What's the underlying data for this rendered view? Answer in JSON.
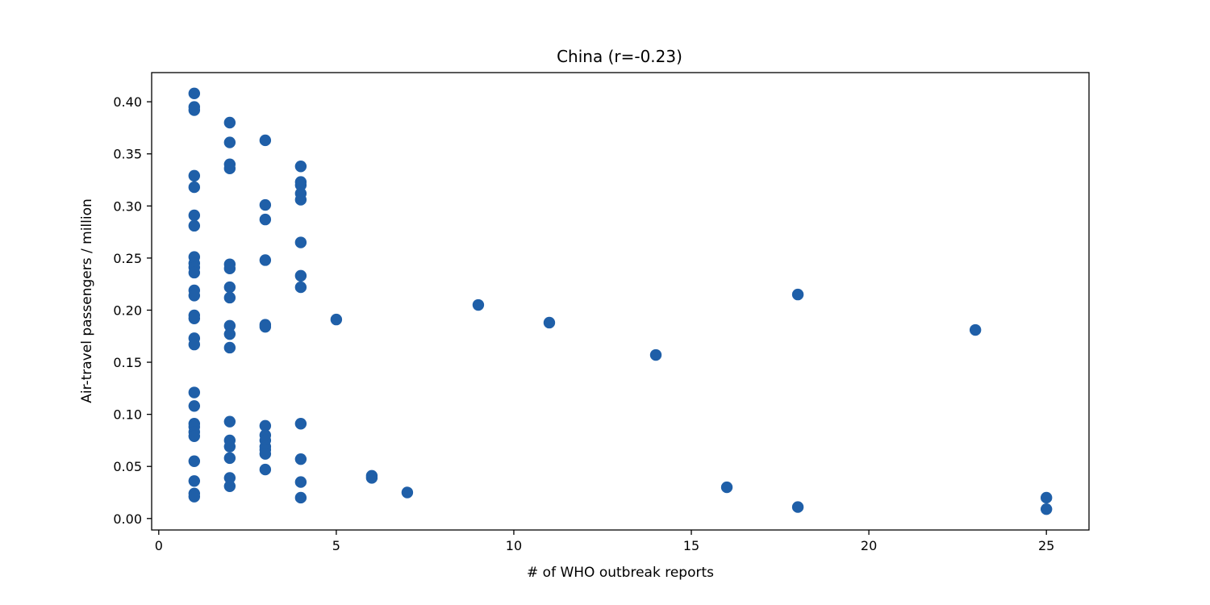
{
  "chart_data": {
    "type": "scatter",
    "title": "China (r=-0.23)",
    "xlabel": "# of WHO outbreak reports",
    "ylabel": "Air-travel passengers / million",
    "xlim": [
      -0.2,
      26.2
    ],
    "ylim": [
      -0.011,
      0.428
    ],
    "xticks": [
      0,
      5,
      10,
      15,
      20,
      25
    ],
    "yticks": [
      0.0,
      0.05,
      0.1,
      0.15,
      0.2,
      0.25,
      0.3,
      0.35,
      0.4
    ],
    "ytick_labels": [
      "0.00",
      "0.05",
      "0.10",
      "0.15",
      "0.20",
      "0.25",
      "0.30",
      "0.35",
      "0.40"
    ],
    "grid": false,
    "marker_color": "#1f5fa8",
    "points": [
      [
        1,
        0.408
      ],
      [
        1,
        0.395
      ],
      [
        1,
        0.392
      ],
      [
        1,
        0.329
      ],
      [
        1,
        0.318
      ],
      [
        1,
        0.291
      ],
      [
        1,
        0.281
      ],
      [
        1,
        0.251
      ],
      [
        1,
        0.245
      ],
      [
        1,
        0.241
      ],
      [
        1,
        0.236
      ],
      [
        1,
        0.219
      ],
      [
        1,
        0.214
      ],
      [
        1,
        0.195
      ],
      [
        1,
        0.192
      ],
      [
        1,
        0.173
      ],
      [
        1,
        0.167
      ],
      [
        1,
        0.121
      ],
      [
        1,
        0.108
      ],
      [
        1,
        0.091
      ],
      [
        1,
        0.088
      ],
      [
        1,
        0.083
      ],
      [
        1,
        0.079
      ],
      [
        1,
        0.055
      ],
      [
        1,
        0.036
      ],
      [
        1,
        0.024
      ],
      [
        1,
        0.021
      ],
      [
        2,
        0.38
      ],
      [
        2,
        0.361
      ],
      [
        2,
        0.34
      ],
      [
        2,
        0.336
      ],
      [
        2,
        0.244
      ],
      [
        2,
        0.24
      ],
      [
        2,
        0.222
      ],
      [
        2,
        0.212
      ],
      [
        2,
        0.185
      ],
      [
        2,
        0.177
      ],
      [
        2,
        0.164
      ],
      [
        2,
        0.093
      ],
      [
        2,
        0.075
      ],
      [
        2,
        0.069
      ],
      [
        2,
        0.058
      ],
      [
        2,
        0.039
      ],
      [
        2,
        0.031
      ],
      [
        3,
        0.363
      ],
      [
        3,
        0.301
      ],
      [
        3,
        0.287
      ],
      [
        3,
        0.248
      ],
      [
        3,
        0.186
      ],
      [
        3,
        0.184
      ],
      [
        3,
        0.089
      ],
      [
        3,
        0.08
      ],
      [
        3,
        0.075
      ],
      [
        3,
        0.069
      ],
      [
        3,
        0.066
      ],
      [
        3,
        0.062
      ],
      [
        3,
        0.047
      ],
      [
        4,
        0.338
      ],
      [
        4,
        0.323
      ],
      [
        4,
        0.32
      ],
      [
        4,
        0.312
      ],
      [
        4,
        0.306
      ],
      [
        4,
        0.265
      ],
      [
        4,
        0.233
      ],
      [
        4,
        0.222
      ],
      [
        4,
        0.091
      ],
      [
        4,
        0.057
      ],
      [
        4,
        0.035
      ],
      [
        4,
        0.02
      ],
      [
        5,
        0.191
      ],
      [
        6,
        0.041
      ],
      [
        6,
        0.039
      ],
      [
        7,
        0.025
      ],
      [
        9,
        0.205
      ],
      [
        11,
        0.188
      ],
      [
        14,
        0.157
      ],
      [
        16,
        0.03
      ],
      [
        18,
        0.215
      ],
      [
        18,
        0.011
      ],
      [
        23,
        0.181
      ],
      [
        25,
        0.02
      ],
      [
        25,
        0.009
      ]
    ]
  }
}
